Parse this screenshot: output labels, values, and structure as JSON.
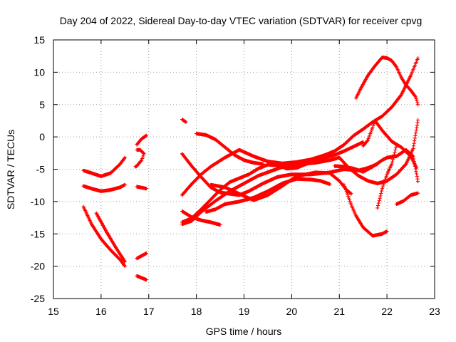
{
  "chart_data": {
    "type": "scatter",
    "title": "Day 204 of 2022, Sidereal Day-to-day VTEC variation (SDTVAR) for receiver cpvg",
    "xlabel": "GPS time / hours",
    "ylabel": "SDTVAR / TECUs",
    "xlim": [
      15,
      23
    ],
    "ylim": [
      -25,
      15
    ],
    "xticks": [
      "15",
      "16",
      "17",
      "18",
      "19",
      "20",
      "21",
      "22",
      "23"
    ],
    "yticks": [
      "15",
      "10",
      "5",
      "0",
      "-5",
      "-10",
      "-15",
      "-20",
      "-25"
    ],
    "grid": true,
    "marker": "+",
    "color": "#ff0000",
    "series": [
      {
        "name": "s1",
        "x": [
          15.63,
          15.8,
          16.0,
          16.2,
          16.4,
          16.5
        ],
        "y": [
          -5.2,
          -5.6,
          -6.1,
          -5.6,
          -4.2,
          -3.2
        ]
      },
      {
        "name": "s2",
        "x": [
          15.63,
          15.8,
          16.0,
          16.2,
          16.4,
          16.5
        ],
        "y": [
          -7.6,
          -8.0,
          -8.4,
          -8.2,
          -7.8,
          -7.4
        ]
      },
      {
        "name": "s3",
        "x": [
          15.63,
          15.8,
          16.0,
          16.2,
          16.4,
          16.5
        ],
        "y": [
          -10.8,
          -13.5,
          -15.8,
          -17.5,
          -19.0,
          -20.0
        ]
      },
      {
        "name": "s4",
        "x": [
          15.9,
          16.1,
          16.3,
          16.5
        ],
        "y": [
          -11.8,
          -14.5,
          -17.0,
          -19.3
        ]
      },
      {
        "name": "s5",
        "x": [
          16.75,
          16.85,
          16.95
        ],
        "y": [
          -1.2,
          -0.3,
          0.2
        ]
      },
      {
        "name": "s6",
        "x": [
          16.75,
          16.82,
          16.9,
          16.85,
          16.75,
          16.72
        ],
        "y": [
          -2.0,
          -2.0,
          -2.6,
          -3.6,
          -4.5,
          -4.6
        ]
      },
      {
        "name": "s7",
        "x": [
          16.75,
          16.95
        ],
        "y": [
          -7.7,
          -8.0
        ]
      },
      {
        "name": "s8",
        "x": [
          16.75,
          16.95
        ],
        "y": [
          -18.8,
          -18.0
        ]
      },
      {
        "name": "s9",
        "x": [
          16.75,
          16.95
        ],
        "y": [
          -21.5,
          -22.1
        ]
      },
      {
        "name": "s10",
        "x": [
          17.7,
          17.78
        ],
        "y": [
          2.7,
          2.3
        ]
      },
      {
        "name": "s11",
        "x": [
          18.0,
          18.2,
          18.4,
          18.6,
          18.8,
          19.0,
          19.2,
          19.4
        ],
        "y": [
          0.5,
          0.3,
          -0.4,
          -1.6,
          -2.8,
          -3.6,
          -4.0,
          -4.2
        ]
      },
      {
        "name": "s12",
        "x": [
          17.7,
          17.9,
          18.1,
          18.3,
          18.5,
          18.7,
          18.9,
          19.1,
          19.4,
          19.7,
          20.0,
          20.4,
          20.8,
          21.1,
          21.4,
          21.6,
          21.8
        ],
        "y": [
          -2.6,
          -4.5,
          -6.2,
          -7.8,
          -8.6,
          -8.8,
          -9.0,
          -8.4,
          -7.2,
          -6.2,
          -5.8,
          -5.8,
          -5.5,
          -5.0,
          -5.2,
          -4.8,
          -4.2
        ]
      },
      {
        "name": "s13",
        "x": [
          17.7,
          17.9,
          18.1,
          18.3,
          18.6,
          18.9,
          19.2,
          19.5,
          19.8,
          20.1,
          20.4,
          20.7,
          20.9,
          21.1,
          21.3,
          21.5,
          21.7,
          21.9,
          22.1,
          22.3,
          22.5,
          22.65
        ],
        "y": [
          -9.0,
          -7.3,
          -5.8,
          -4.6,
          -3.2,
          -2.0,
          -3.0,
          -3.8,
          -4.1,
          -3.9,
          -3.5,
          -2.8,
          -2.2,
          -1.2,
          0.2,
          1.2,
          2.3,
          3.2,
          4.6,
          6.5,
          9.5,
          12.2
        ]
      },
      {
        "name": "s14",
        "x": [
          17.7,
          17.9,
          18.1,
          18.3,
          18.5,
          18.7,
          18.9,
          19.1,
          19.3,
          19.5,
          19.7,
          19.9,
          20.1,
          20.3,
          20.5,
          20.7,
          20.9,
          21.1,
          21.3,
          21.5
        ],
        "y": [
          -13.2,
          -12.6,
          -11.2,
          -9.7,
          -8.2,
          -7.0,
          -6.4,
          -5.8,
          -4.9,
          -4.3,
          -4.4,
          -4.9,
          -4.8,
          -4.2,
          -3.8,
          -3.2,
          -2.8,
          -2.2,
          -1.5,
          -0.8
        ]
      },
      {
        "name": "s15",
        "x": [
          17.7,
          17.9,
          18.1,
          18.3,
          18.5
        ],
        "y": [
          -11.5,
          -12.4,
          -12.9,
          -13.2,
          -13.6
        ]
      },
      {
        "name": "s16",
        "x": [
          17.7,
          17.9,
          18.1,
          18.4,
          18.7,
          19.0,
          19.3,
          19.6,
          19.9,
          20.2,
          20.5,
          20.8,
          21.0,
          21.2,
          21.4,
          21.6,
          21.8,
          22.0,
          22.2,
          22.4,
          22.55,
          22.65
        ],
        "y": [
          -13.5,
          -13.0,
          -11.6,
          -9.9,
          -8.4,
          -7.2,
          -6.0,
          -5.2,
          -4.4,
          -4.2,
          -4.0,
          -3.6,
          -3.2,
          -4.8,
          -6.0,
          -6.8,
          -7.2,
          -6.8,
          -5.8,
          -4.2,
          -1.8,
          2.6
        ]
      },
      {
        "name": "s17",
        "x": [
          18.2,
          18.4,
          18.6,
          18.9,
          19.2,
          19.5,
          19.8,
          20.1,
          20.4,
          20.6,
          20.8
        ],
        "y": [
          -11.6,
          -11.2,
          -10.4,
          -10.0,
          -9.4,
          -8.4,
          -7.2,
          -6.5,
          -6.6,
          -6.8,
          -7.3
        ]
      },
      {
        "name": "s18",
        "x": [
          18.3,
          18.6,
          18.9,
          19.2,
          19.5,
          19.8,
          20.1,
          20.5,
          20.8,
          21.0,
          21.15,
          21.25
        ],
        "y": [
          -7.4,
          -7.8,
          -8.8,
          -9.8,
          -9.0,
          -7.6,
          -6.1,
          -5.5,
          -5.6,
          -6.8,
          -8.2,
          -8.8
        ]
      },
      {
        "name": "s19",
        "x": [
          20.9,
          21.1,
          21.3,
          21.5,
          21.7,
          21.9,
          22.0,
          22.2,
          22.4,
          22.55,
          22.65
        ],
        "y": [
          -4.5,
          -4.6,
          -4.9,
          -5.4,
          -4.6,
          -3.6,
          -3.2,
          -3.0,
          -2.0,
          -3.0,
          -6.9
        ]
      },
      {
        "name": "s20",
        "x": [
          21.1,
          21.25,
          21.35,
          21.5,
          21.7,
          21.9,
          22.0
        ],
        "y": [
          -7.4,
          -10.5,
          -12.2,
          -14.0,
          -15.3,
          -15.0,
          -14.6
        ]
      },
      {
        "name": "s21",
        "x": [
          21.5,
          21.6,
          21.75,
          21.9,
          22.1,
          22.3,
          22.5,
          22.62
        ],
        "y": [
          -1.4,
          -0.5,
          2.5,
          1.0,
          -0.7,
          -1.6,
          -3.0,
          -4.8
        ]
      },
      {
        "name": "s22",
        "x": [
          21.35,
          21.45,
          21.6,
          21.75,
          21.9,
          22.0,
          22.1,
          22.2,
          22.3,
          22.4,
          22.5,
          22.6,
          22.65
        ],
        "y": [
          6.0,
          7.5,
          9.5,
          11.0,
          12.3,
          12.2,
          11.8,
          10.8,
          9.2,
          8.0,
          7.2,
          6.2,
          5.0
        ]
      },
      {
        "name": "s23",
        "x": [
          21.8,
          21.9,
          22.0,
          22.1,
          22.2
        ],
        "y": [
          -11.0,
          -8.0,
          -5.8,
          -4.2,
          -1.3
        ]
      },
      {
        "name": "s24",
        "x": [
          22.2,
          22.35,
          22.5,
          22.65
        ],
        "y": [
          -10.4,
          -9.9,
          -9.0,
          -8.7
        ]
      }
    ]
  }
}
